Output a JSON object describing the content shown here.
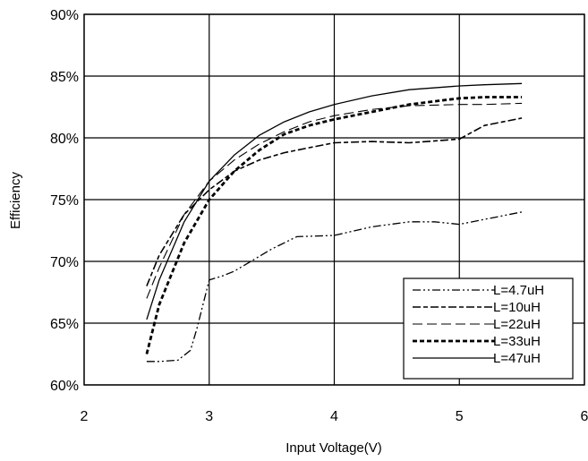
{
  "chart_data": {
    "type": "line",
    "xlabel": "Input Voltage(V)",
    "ylabel": "Efficiency",
    "xlim": [
      2,
      6
    ],
    "ylim": [
      60,
      90
    ],
    "x_ticks": [
      "2",
      "3",
      "4",
      "5",
      "6"
    ],
    "y_ticks": [
      "60%",
      "65%",
      "70%",
      "75%",
      "80%",
      "85%",
      "90%"
    ],
    "grid": true,
    "legend_position": "bottom-right",
    "series": [
      {
        "name": "L=4.7uH",
        "x": [
          2.5,
          2.6,
          2.75,
          2.85,
          2.9,
          2.95,
          3.0,
          3.1,
          3.2,
          3.5,
          3.7,
          4.0,
          4.3,
          4.6,
          4.8,
          5.0,
          5.2,
          5.5
        ],
        "y": [
          61.9,
          61.9,
          62.0,
          62.8,
          64.5,
          66.5,
          68.5,
          68.8,
          69.2,
          71.0,
          72.0,
          72.1,
          72.8,
          73.2,
          73.2,
          73.0,
          73.4,
          74.0
        ]
      },
      {
        "name": "L=10uH",
        "x": [
          2.5,
          2.6,
          2.8,
          3.0,
          3.2,
          3.4,
          3.6,
          3.8,
          4.0,
          4.3,
          4.6,
          5.0,
          5.2,
          5.5
        ],
        "y": [
          68.0,
          70.5,
          73.8,
          75.8,
          77.3,
          78.2,
          78.8,
          79.2,
          79.6,
          79.7,
          79.6,
          79.9,
          81.0,
          81.6
        ]
      },
      {
        "name": "L=22uH",
        "x": [
          2.5,
          2.6,
          2.8,
          3.0,
          3.2,
          3.4,
          3.6,
          3.8,
          4.0,
          4.3,
          4.6,
          5.0,
          5.2,
          5.5
        ],
        "y": [
          67.0,
          69.5,
          73.8,
          76.5,
          78.2,
          79.5,
          80.5,
          81.3,
          81.8,
          82.3,
          82.6,
          82.7,
          82.7,
          82.8
        ]
      },
      {
        "name": "L=33uH",
        "x": [
          2.5,
          2.6,
          2.8,
          3.0,
          3.2,
          3.4,
          3.6,
          3.8,
          4.0,
          4.3,
          4.6,
          5.0,
          5.2,
          5.5
        ],
        "y": [
          62.5,
          66.5,
          71.5,
          75.0,
          77.3,
          79.0,
          80.3,
          81.0,
          81.5,
          82.1,
          82.7,
          83.2,
          83.3,
          83.3
        ]
      },
      {
        "name": "L=47uH",
        "x": [
          2.5,
          2.6,
          2.8,
          3.0,
          3.2,
          3.4,
          3.6,
          3.8,
          4.0,
          4.3,
          4.6,
          5.0,
          5.2,
          5.5
        ],
        "y": [
          65.3,
          68.5,
          73.2,
          76.5,
          78.6,
          80.2,
          81.3,
          82.1,
          82.7,
          83.4,
          83.9,
          84.2,
          84.3,
          84.4
        ]
      }
    ]
  },
  "styles": {
    "series_dash": [
      "9,3,2,3,2,3",
      "9,3,5,3",
      "11,5",
      "5,3",
      "none"
    ],
    "series_width": [
      1.3,
      1.6,
      1.1,
      2.8,
      1.3
    ]
  }
}
